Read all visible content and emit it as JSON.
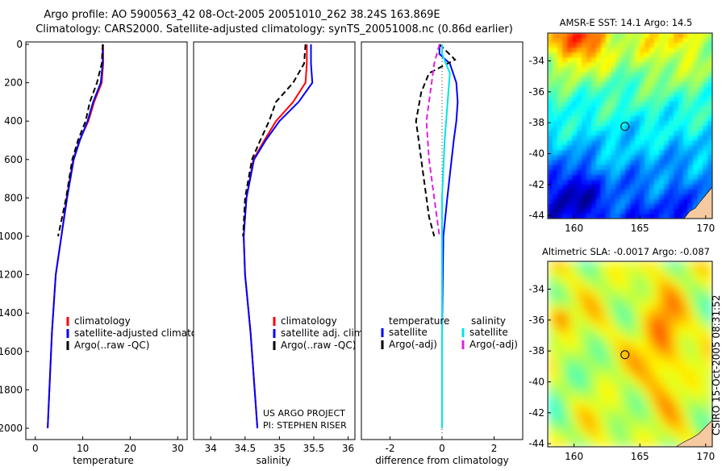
{
  "header": {
    "line1": "Argo profile: AO 5900563_42 08-Oct-2005 20051010_262 38.24S 163.869E",
    "line2": "Climatology: CARS2000. Satellite-adjusted climatology: synTS_20051008.nc (0.86d earlier)"
  },
  "colors": {
    "climatology": "#ff0000",
    "satellite": "#0000ff",
    "argo": "#000000",
    "salinity_satellite": "#00e5e5",
    "salinity_argo": "#e020e0"
  },
  "credits": {
    "project": "US ARGO PROJECT",
    "pi": "PI: STEPHEN RISER"
  },
  "timestamp": "CSIRO 15-Oct-2005 08:31:52",
  "chart_data": [
    {
      "id": "temperature",
      "type": "line",
      "xlabel": "temperature",
      "ylabel": "",
      "xlim": [
        -2,
        32
      ],
      "ylim": [
        2050,
        0
      ],
      "xticks": [
        0,
        10,
        20,
        30
      ],
      "yticks": [
        0,
        200,
        400,
        600,
        800,
        1000,
        1200,
        1400,
        1600,
        1800,
        2000
      ],
      "legend": {
        "position": "lower-right",
        "entries": [
          "climatology",
          "satellite-adjusted climatology",
          "Argo(..raw -QC)"
        ]
      },
      "series": [
        {
          "name": "climatology",
          "color": "#ff0000",
          "style": "solid",
          "x": [
            14.3,
            14.3,
            14.0,
            12.4,
            11.2,
            9.3,
            8.0,
            6.6,
            5.5,
            4.3,
            3.5,
            2.6
          ],
          "y": [
            0,
            100,
            200,
            300,
            400,
            500,
            600,
            800,
            1000,
            1200,
            1500,
            2000
          ]
        },
        {
          "name": "satellite-adjusted climatology",
          "color": "#0000ff",
          "style": "solid",
          "x": [
            14.2,
            14.2,
            13.8,
            12.2,
            11.0,
            9.4,
            8.1,
            6.7,
            5.5,
            4.3,
            3.5,
            2.6
          ],
          "y": [
            0,
            100,
            200,
            300,
            400,
            500,
            600,
            800,
            1000,
            1200,
            1500,
            2000
          ]
        },
        {
          "name": "Argo(..raw -QC)",
          "color": "#000000",
          "style": "dashed",
          "x": [
            14.2,
            14.0,
            13.0,
            11.5,
            10.6,
            9.0,
            7.8,
            6.5,
            4.8
          ],
          "y": [
            0,
            100,
            200,
            300,
            400,
            500,
            600,
            800,
            1000
          ]
        }
      ]
    },
    {
      "id": "salinity",
      "type": "line",
      "xlabel": "salinity",
      "ylabel": "",
      "xlim": [
        33.75,
        36.1
      ],
      "ylim": [
        2050,
        0
      ],
      "xticks": [
        34,
        34.5,
        35,
        35.5,
        36
      ],
      "xticklabels": [
        "34",
        "34.5",
        "35",
        "35.5",
        "36"
      ],
      "legend": {
        "position": "lower-right",
        "entries": [
          "climatology",
          "satellite adj. clim.",
          "Argo(..raw -QC)"
        ]
      },
      "series": [
        {
          "name": "climatology",
          "color": "#ff0000",
          "style": "solid",
          "x": [
            35.4,
            35.4,
            35.38,
            35.2,
            34.95,
            34.78,
            34.62,
            34.52,
            34.48,
            34.5,
            34.58,
            34.68
          ],
          "y": [
            0,
            100,
            200,
            300,
            400,
            500,
            600,
            800,
            1000,
            1200,
            1500,
            2000
          ]
        },
        {
          "name": "satellite adj. clim.",
          "color": "#0000ff",
          "style": "solid",
          "x": [
            35.46,
            35.46,
            35.48,
            35.28,
            35.0,
            34.8,
            34.63,
            34.52,
            34.48,
            34.5,
            34.58,
            34.68
          ],
          "y": [
            0,
            100,
            200,
            300,
            400,
            500,
            600,
            800,
            1000,
            1200,
            1500,
            2000
          ]
        },
        {
          "name": "Argo(..raw -QC)",
          "color": "#000000",
          "style": "dashed",
          "x": [
            35.38,
            35.36,
            35.2,
            34.95,
            34.85,
            34.72,
            34.6,
            34.5,
            34.47
          ],
          "y": [
            0,
            100,
            200,
            300,
            400,
            500,
            600,
            800,
            1000
          ]
        }
      ],
      "credits": [
        "US ARGO PROJECT",
        "PI: STEPHEN RISER"
      ]
    },
    {
      "id": "difference",
      "type": "line",
      "xlabel": "difference from climatology",
      "ylabel": "",
      "xlim": [
        -3.1,
        3.1
      ],
      "ylim": [
        2050,
        0
      ],
      "xticks": [
        -2,
        0,
        2
      ],
      "legend": {
        "position": "lower-center",
        "groups": [
          {
            "title": "temperature",
            "entries": [
              "satellite",
              "Argo(-adj)"
            ]
          },
          {
            "title": "salinity",
            "entries": [
              "satellite",
              "Argo(-adj)"
            ]
          }
        ]
      },
      "series": [
        {
          "name": "temperature satellite",
          "color": "#0000ff",
          "style": "solid",
          "x": [
            -0.1,
            -0.1,
            0.3,
            0.55,
            0.6,
            0.55,
            0.45,
            0.2,
            0.05,
            0.0,
            0.0
          ],
          "y": [
            0,
            50,
            100,
            200,
            300,
            400,
            500,
            800,
            1000,
            1500,
            2000
          ]
        },
        {
          "name": "temperature Argo(-adj)",
          "color": "#000000",
          "style": "dashed",
          "x": [
            -0.1,
            0.5,
            -0.5,
            -0.8,
            -1.0,
            -0.9,
            -0.7,
            -0.5,
            -0.3
          ],
          "y": [
            0,
            80,
            150,
            250,
            400,
            500,
            700,
            900,
            1000
          ]
        },
        {
          "name": "salinity satellite",
          "color": "#00e5e5",
          "style": "solid",
          "x": [
            0.0,
            0.0,
            0.3,
            0.1,
            0.0,
            0.0,
            0.0
          ],
          "y": [
            0,
            50,
            150,
            500,
            800,
            1000,
            2000
          ]
        },
        {
          "name": "salinity Argo(-adj)",
          "color": "#e020e0",
          "style": "dashed",
          "x": [
            -0.1,
            -0.3,
            -0.4,
            -0.6,
            -0.5,
            -0.3,
            -0.1
          ],
          "y": [
            0,
            100,
            200,
            400,
            600,
            800,
            1000
          ]
        }
      ]
    },
    {
      "id": "amsre-sst-map",
      "type": "heatmap",
      "title": "AMSR-E SST: 14.1 Argo: 14.5",
      "xlim": [
        158,
        170.5
      ],
      "ylim": [
        -44.2,
        -32.2
      ],
      "xticks": [
        160,
        165,
        170
      ],
      "yticks": [
        -34,
        -36,
        -38,
        -40,
        -42,
        -44
      ],
      "marker": {
        "lon": 163.869,
        "lat": -38.24
      }
    },
    {
      "id": "altimetric-sla-map",
      "type": "heatmap",
      "title": "Altimetric SLA: -0.0017 Argo: -0.087",
      "xlim": [
        158,
        170.5
      ],
      "ylim": [
        -44.2,
        -32.2
      ],
      "xticks": [
        160,
        165,
        170
      ],
      "yticks": [
        -34,
        -36,
        -38,
        -40,
        -42,
        -44
      ],
      "marker": {
        "lon": 163.869,
        "lat": -38.24
      }
    }
  ]
}
